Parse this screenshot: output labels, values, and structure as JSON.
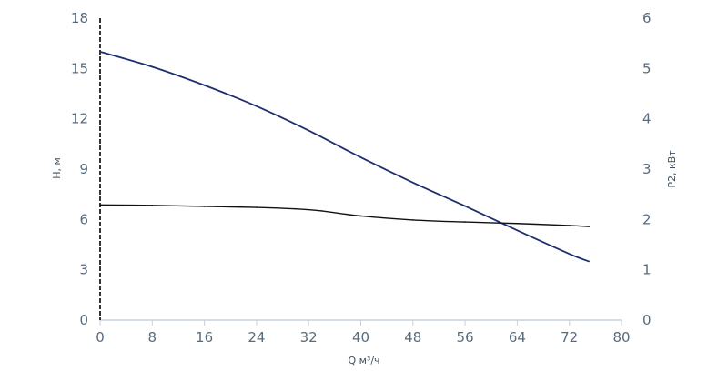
{
  "chart_data": {
    "type": "line",
    "xlabel": "Q м³/ч",
    "ylabel": "H, м",
    "y2label": "P2, кВт",
    "xlim": [
      0,
      80
    ],
    "ylim": [
      0,
      18
    ],
    "y2lim": [
      0,
      6
    ],
    "xticks": [
      "0",
      "8",
      "16",
      "24",
      "32",
      "40",
      "48",
      "56",
      "64",
      "72",
      "80"
    ],
    "yticks": [
      "0",
      "3",
      "6",
      "9",
      "12",
      "15",
      "18"
    ],
    "y2ticks": [
      "0",
      "1",
      "2",
      "3",
      "4",
      "5",
      "6"
    ],
    "grid": false,
    "legend": "none",
    "series": [
      {
        "axis": "left",
        "color": "#1f2f6e",
        "x": [
          0,
          8,
          16,
          24,
          32,
          40,
          48,
          56,
          64,
          72,
          75
        ],
        "y": [
          16.0,
          15.1,
          14.0,
          12.75,
          11.3,
          9.7,
          8.2,
          6.8,
          5.35,
          3.95,
          3.5
        ]
      },
      {
        "axis": "right",
        "color": "#111111",
        "x": [
          0,
          8,
          16,
          24,
          30,
          34,
          40,
          48,
          56,
          64,
          72,
          75
        ],
        "y": [
          2.29,
          2.28,
          2.26,
          2.24,
          2.21,
          2.17,
          2.07,
          1.99,
          1.95,
          1.92,
          1.88,
          1.86
        ]
      }
    ]
  }
}
